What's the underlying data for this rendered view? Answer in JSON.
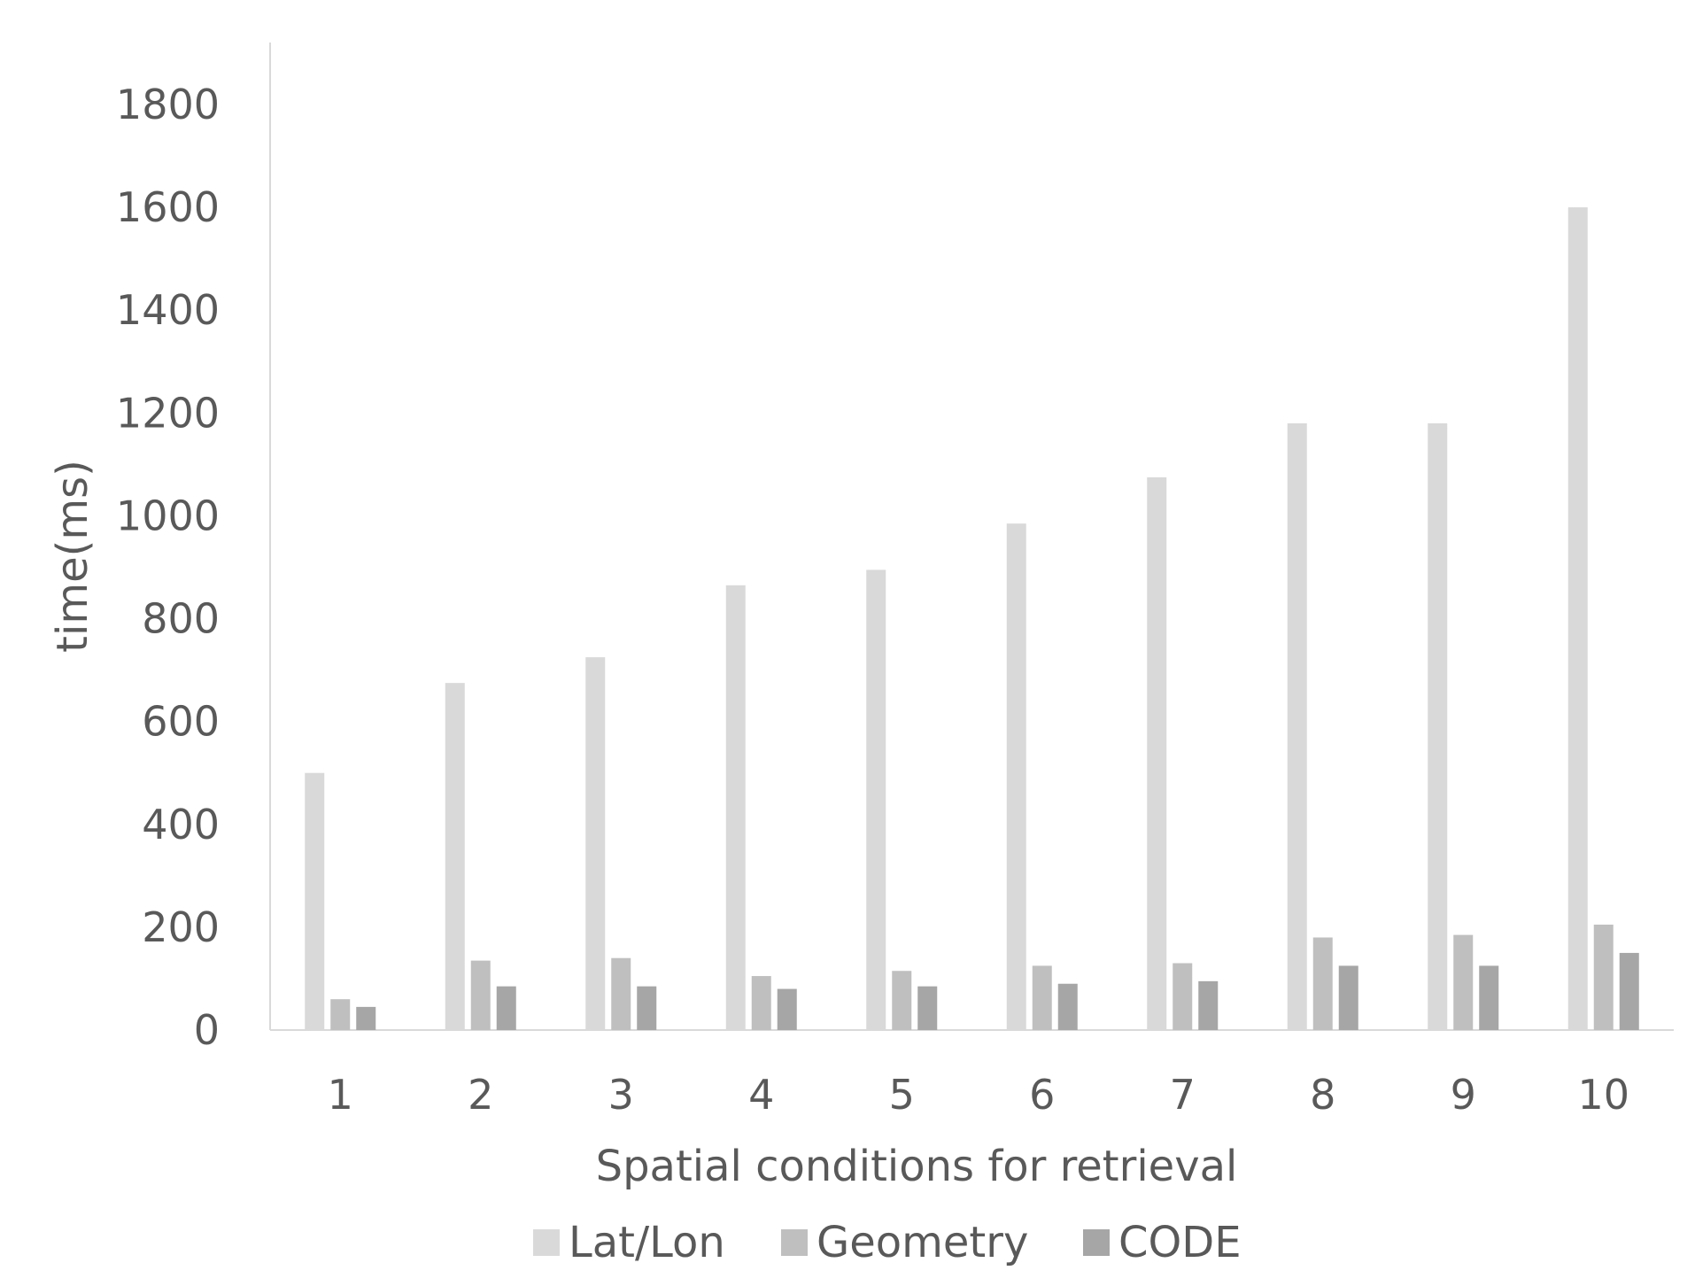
{
  "chart_data": {
    "type": "bar",
    "title": "",
    "xlabel": "Spatial conditions for retrieval",
    "ylabel": "time(ms)",
    "ylim": [
      0,
      1800
    ],
    "yticks": [
      0,
      200,
      400,
      600,
      800,
      1000,
      1200,
      1400,
      1600,
      1800
    ],
    "categories": [
      "1",
      "2",
      "3",
      "4",
      "5",
      "6",
      "7",
      "8",
      "9",
      "10"
    ],
    "series": [
      {
        "name": "Lat/Lon",
        "color": "#d9d9d9",
        "values": [
          500,
          675,
          725,
          865,
          895,
          985,
          1075,
          1180,
          1180,
          1600
        ]
      },
      {
        "name": "Geometry",
        "color": "#bfbfbf",
        "values": [
          60,
          135,
          140,
          105,
          115,
          125,
          130,
          180,
          185,
          205
        ]
      },
      {
        "name": "CODE",
        "color": "#a6a6a6",
        "values": [
          45,
          85,
          85,
          80,
          85,
          90,
          95,
          125,
          125,
          150
        ]
      }
    ],
    "grid": false,
    "legend_position": "bottom"
  }
}
